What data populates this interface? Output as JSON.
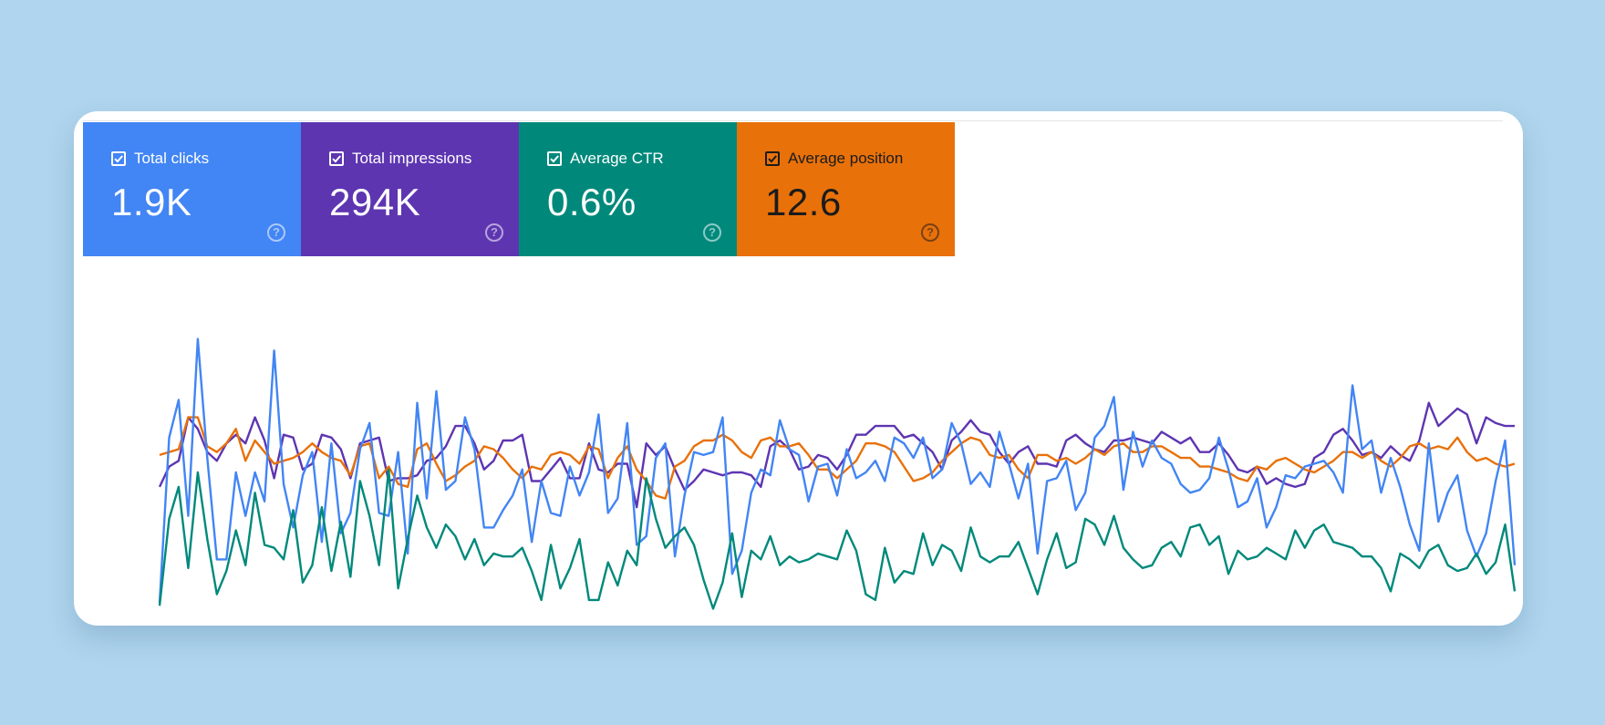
{
  "metrics": [
    {
      "label": "Total clicks",
      "value": "1.9K",
      "color": "#4285f4",
      "text_color": "#ffffff",
      "checked": true,
      "help_icon": "help-circle-icon"
    },
    {
      "label": "Total impressions",
      "value": "294K",
      "color": "#5e35b1",
      "text_color": "#ffffff",
      "checked": true,
      "help_icon": "help-circle-icon"
    },
    {
      "label": "Average CTR",
      "value": "0.6%",
      "color": "#00897b",
      "text_color": "#ffffff",
      "checked": true,
      "help_icon": "help-circle-icon"
    },
    {
      "label": "Average position",
      "value": "12.6",
      "color": "#e8710a",
      "text_color": "#1b1b1b",
      "checked": true,
      "help_icon": "help-circle-icon"
    }
  ],
  "chart_data": {
    "type": "line",
    "title": "",
    "xlabel": "",
    "ylabel": "",
    "grid": false,
    "legend": "none",
    "axes_visible": false,
    "ylim": [
      0,
      100
    ],
    "series": [
      {
        "metric": "Total impressions",
        "color": "#5e35b1",
        "values": [
          45,
          52,
          54,
          69,
          65,
          57,
          54,
          60,
          63,
          60,
          69,
          61,
          48,
          63,
          62,
          51,
          53,
          63,
          62,
          58,
          48,
          60,
          61,
          62,
          47,
          48,
          48,
          49,
          54,
          55,
          59,
          66,
          66,
          60,
          51,
          54,
          61,
          61,
          63,
          47,
          47,
          51,
          55,
          48,
          48,
          60,
          51,
          50,
          53,
          53,
          38,
          60,
          56,
          59,
          51,
          44,
          47,
          51,
          50,
          49,
          50,
          50,
          49,
          45,
          59,
          61,
          58,
          51,
          52,
          56,
          55,
          51,
          56,
          63,
          63,
          66,
          66,
          66,
          62,
          63,
          60,
          57,
          51,
          61,
          64,
          68,
          64,
          63,
          57,
          53,
          57,
          59,
          53,
          53,
          52,
          61,
          63,
          60,
          58,
          57,
          61,
          61,
          62,
          61,
          60,
          64,
          62,
          60,
          62,
          57,
          57,
          60,
          56,
          51,
          50,
          52,
          46,
          48,
          46,
          45,
          46,
          55,
          57,
          63,
          65,
          61,
          56,
          57,
          55,
          59,
          56,
          54,
          61,
          74,
          66,
          69,
          72,
          70,
          60,
          69,
          67,
          66,
          66
        ],
        "offset": [
          0,
          0,
          0,
          0,
          0,
          0,
          0,
          0,
          0,
          0,
          0,
          0,
          0,
          0,
          0,
          0,
          0,
          0,
          0,
          0,
          0,
          0,
          0,
          0,
          0,
          0,
          0,
          0,
          0,
          0,
          0,
          0,
          0,
          0,
          0,
          0,
          0,
          0,
          0,
          0,
          0,
          0,
          0,
          0,
          0,
          0,
          0,
          0,
          0,
          0,
          0,
          0,
          0,
          0,
          0,
          0,
          0,
          0,
          0,
          0,
          0,
          0,
          0,
          0,
          0,
          0,
          0,
          0,
          0,
          0,
          0,
          0,
          0,
          0,
          0,
          0,
          0,
          0,
          0,
          0,
          0,
          0,
          0,
          0,
          0,
          0,
          0,
          0,
          0,
          0,
          0,
          0,
          0,
          0,
          0,
          0,
          0,
          0,
          0,
          0,
          0,
          0,
          0,
          0,
          0,
          0,
          0,
          0,
          0,
          0,
          0,
          0,
          0,
          0,
          0,
          0,
          0,
          0,
          0,
          0,
          0,
          0,
          0,
          0,
          0,
          0,
          0,
          0,
          0,
          0,
          0,
          0,
          0,
          0,
          0,
          0,
          0,
          0,
          0,
          0,
          0,
          0,
          0
        ]
      },
      {
        "metric": "Average position",
        "color": "#e8710a",
        "values": [
          56,
          57,
          58,
          69,
          69,
          59,
          57,
          60,
          65,
          54,
          61,
          57,
          53,
          54,
          55,
          57,
          60,
          57,
          55,
          54,
          49,
          59,
          60,
          48,
          52,
          46,
          45,
          58,
          60,
          53,
          47,
          49,
          52,
          54,
          59,
          58,
          55,
          51,
          48,
          52,
          51,
          56,
          57,
          56,
          53,
          59,
          58,
          48,
          55,
          59,
          51,
          47,
          42,
          41,
          52,
          54,
          59,
          61,
          61,
          63,
          61,
          57,
          55,
          61,
          62,
          59,
          59,
          60,
          56,
          51,
          51,
          48,
          51,
          54,
          60,
          60,
          59,
          57,
          52,
          47,
          48,
          50,
          54,
          57,
          60,
          62,
          61,
          56,
          55,
          56,
          51,
          48,
          56,
          56,
          54,
          55,
          53,
          55,
          58,
          56,
          59,
          60,
          57,
          57,
          59,
          59,
          57,
          55,
          55,
          52,
          52,
          51,
          50,
          48,
          47,
          52,
          51,
          54,
          55,
          53,
          51,
          50,
          52,
          54,
          57,
          57,
          55,
          57,
          54,
          52,
          55,
          59,
          60,
          58,
          59,
          58,
          62,
          57,
          54,
          55,
          53,
          52,
          53
        ],
        "offset": [
          0,
          0,
          0,
          0,
          0,
          0,
          0,
          0,
          0,
          0,
          0,
          0,
          0,
          0,
          0,
          0,
          0,
          0,
          0,
          0,
          0,
          0,
          0,
          0,
          0,
          0,
          0,
          0,
          0,
          0,
          0,
          0,
          0,
          0,
          0,
          0,
          0,
          0,
          0,
          0,
          0,
          0,
          0,
          0,
          0,
          0,
          0,
          0,
          0,
          0,
          0,
          0,
          0,
          0,
          0,
          0,
          0,
          0,
          0,
          0,
          0,
          0,
          0,
          0,
          0,
          0,
          0,
          0,
          0,
          0,
          0,
          0,
          0,
          0,
          0,
          0,
          0,
          0,
          0,
          0,
          0,
          0,
          0,
          0,
          0,
          0,
          0,
          0,
          0,
          0,
          0,
          0,
          0,
          0,
          0,
          0,
          0,
          0,
          0,
          0,
          0,
          0,
          0,
          0,
          0,
          0,
          0,
          0,
          0,
          0,
          0,
          0,
          0,
          0,
          0,
          0,
          0,
          0,
          0,
          0,
          0,
          0,
          0,
          0,
          0,
          0,
          0,
          0,
          0,
          0,
          0,
          0,
          0,
          0,
          0,
          0,
          0,
          0,
          0,
          0,
          0,
          0,
          0
        ]
      },
      {
        "metric": "Total clicks",
        "color": "#4285f4",
        "values": [
          5,
          62,
          75,
          35,
          96,
          55,
          20,
          20,
          50,
          35,
          50,
          40,
          92,
          46,
          31,
          49,
          57,
          26,
          60,
          29,
          36,
          58,
          67,
          36,
          35,
          57,
          22,
          74,
          41,
          78,
          44,
          47,
          69,
          58,
          31,
          31,
          37,
          42,
          51,
          26,
          47,
          36,
          35,
          52,
          42,
          50,
          70,
          36,
          41,
          67,
          25,
          28,
          55,
          60,
          21,
          42,
          57,
          56,
          57,
          69,
          15,
          23,
          43,
          51,
          49,
          68,
          58,
          56,
          40,
          52,
          53,
          42,
          58,
          48,
          50,
          54,
          47,
          62,
          60,
          55,
          62,
          48,
          51,
          67,
          60,
          46,
          50,
          45,
          64,
          53,
          41,
          53,
          22,
          47,
          48,
          54,
          37,
          43,
          62,
          66,
          76,
          44,
          64,
          52,
          61,
          55,
          53,
          46,
          43,
          44,
          48,
          62,
          51,
          38,
          40,
          48,
          31,
          38,
          49,
          48,
          52,
          53,
          54,
          50,
          43,
          80,
          58,
          61,
          43,
          55,
          45,
          32,
          23,
          60,
          33,
          43,
          49,
          30,
          21,
          29,
          47,
          61,
          18
        ],
        "offset": [
          0,
          0,
          0,
          0,
          0,
          0,
          0,
          0,
          0,
          0,
          0,
          0,
          0,
          0,
          0,
          0,
          0,
          0,
          0,
          0,
          0,
          0,
          0,
          0,
          0,
          0,
          0,
          0,
          0,
          0,
          0,
          0,
          0,
          0,
          0,
          0,
          0,
          0,
          0,
          0,
          0,
          0,
          0,
          0,
          0,
          0,
          0,
          0,
          0,
          0,
          0,
          0,
          0,
          0,
          0,
          0,
          0,
          0,
          0,
          0,
          0,
          0,
          0,
          0,
          0,
          0,
          0,
          0,
          0,
          0,
          0,
          0,
          0,
          0,
          0,
          0,
          0,
          0,
          0,
          0,
          0,
          0,
          0,
          0,
          0,
          0,
          0,
          0,
          0,
          0,
          0,
          0,
          0,
          0,
          0,
          0,
          0,
          0,
          0,
          0,
          0,
          0,
          0,
          0,
          0,
          0,
          0,
          0,
          0,
          0,
          0,
          0,
          0,
          0,
          0,
          0,
          0,
          0,
          0,
          0,
          0,
          0,
          0,
          0,
          0,
          0,
          0,
          0,
          0,
          0,
          0,
          0,
          0,
          0,
          0,
          0,
          0,
          0,
          0,
          0,
          0,
          0,
          0
        ]
      },
      {
        "metric": "Average CTR",
        "color": "#00897b",
        "values": [
          4,
          34,
          45,
          17,
          50,
          27,
          8,
          16,
          30,
          18,
          43,
          25,
          24,
          20,
          37,
          12,
          18,
          38,
          16,
          33,
          14,
          47,
          35,
          18,
          51,
          10,
          27,
          42,
          31,
          24,
          32,
          28,
          20,
          27,
          18,
          22,
          21,
          21,
          24,
          16,
          6,
          25,
          10,
          17,
          27,
          6,
          6,
          19,
          11,
          23,
          18,
          48,
          34,
          24,
          28,
          31,
          25,
          13,
          3,
          12,
          29,
          7,
          23,
          20,
          28,
          18,
          21,
          19,
          20,
          22,
          21,
          20,
          30,
          23,
          8,
          6,
          24,
          12,
          16,
          15,
          29,
          18,
          25,
          23,
          16,
          31,
          21,
          19,
          21,
          21,
          26,
          17,
          8,
          20,
          29,
          17,
          19,
          34,
          32,
          25,
          35,
          24,
          20,
          17,
          18,
          24,
          26,
          21,
          31,
          32,
          25,
          28,
          15,
          23,
          20,
          21,
          24,
          22,
          20,
          30,
          24,
          30,
          32,
          26,
          25,
          24,
          21,
          21,
          17,
          9,
          22,
          20,
          17,
          23,
          25,
          18,
          16,
          17,
          22,
          15,
          19,
          32,
          9
        ],
        "offset": [
          0,
          0,
          0,
          0,
          0,
          0,
          0,
          0,
          0,
          0,
          0,
          0,
          0,
          0,
          0,
          0,
          0,
          0,
          0,
          0,
          0,
          0,
          0,
          0,
          0,
          0,
          0,
          0,
          0,
          0,
          0,
          0,
          0,
          0,
          0,
          0,
          0,
          0,
          0,
          0,
          0,
          0,
          0,
          0,
          0,
          0,
          0,
          0,
          0,
          0,
          0,
          0,
          0,
          0,
          0,
          0,
          0,
          0,
          0,
          0,
          0,
          0,
          0,
          0,
          0,
          0,
          0,
          0,
          0,
          0,
          0,
          0,
          0,
          0,
          0,
          0,
          0,
          0,
          0,
          0,
          0,
          0,
          0,
          0,
          0,
          0,
          0,
          0,
          0,
          0,
          0,
          0,
          0,
          0,
          0,
          0,
          0,
          0,
          0,
          0,
          0,
          0,
          0,
          0,
          0,
          0,
          0,
          0,
          0,
          0,
          0,
          0,
          0,
          0,
          0,
          0,
          0,
          0,
          0,
          0,
          0,
          0,
          0,
          0,
          0,
          0,
          0,
          0,
          0,
          0,
          0,
          0,
          0,
          0,
          0,
          0,
          0,
          0,
          0,
          0,
          0,
          0,
          0
        ]
      }
    ]
  }
}
